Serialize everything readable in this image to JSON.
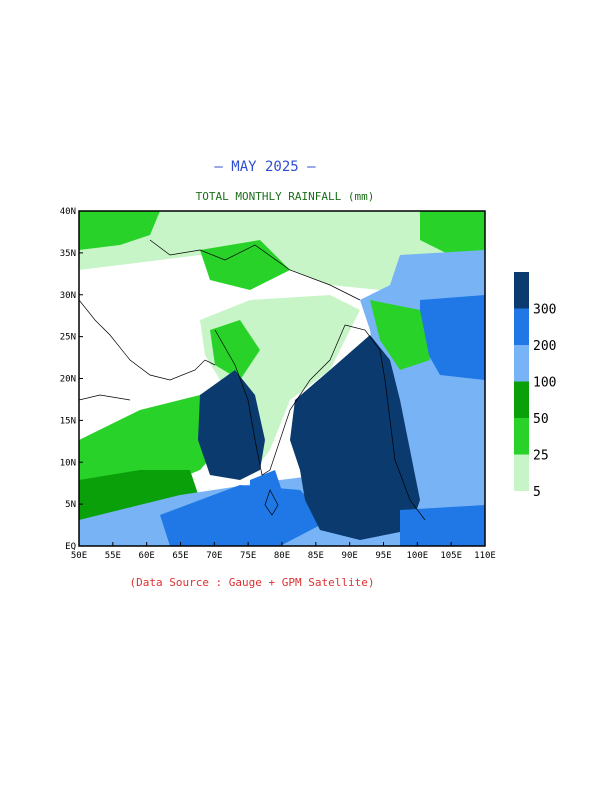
{
  "header": {
    "title": "— MAY 2025 —",
    "subtitle": "TOTAL MONTHLY RAINFALL (mm)"
  },
  "footer": {
    "source": "(Data Source : Gauge + GPM Satellite)"
  },
  "map": {
    "region": "South Asia / Indian Ocean",
    "lon_range": [
      50,
      110
    ],
    "lat_range": [
      0,
      40
    ],
    "x_ticks": [
      "50E",
      "55E",
      "60E",
      "65E",
      "70E",
      "75E",
      "80E",
      "85E",
      "90E",
      "95E",
      "100E",
      "105E",
      "110E"
    ],
    "y_ticks": [
      "EQ",
      "5N",
      "10N",
      "15N",
      "20N",
      "25N",
      "30N",
      "35N",
      "40N"
    ]
  },
  "legend": {
    "unit": "mm",
    "bins": [
      {
        "label": "5",
        "color": "#c8f5c8"
      },
      {
        "label": "25",
        "color": "#28d228"
      },
      {
        "label": "50",
        "color": "#0aa00a"
      },
      {
        "label": "100",
        "color": "#78b4f5"
      },
      {
        "label": "200",
        "color": "#1f78e6"
      },
      {
        "label": "300",
        "color": "#0a3a6e"
      }
    ]
  },
  "colors": {
    "light_green": "#c8f5c8",
    "green": "#28d228",
    "dark_green": "#0aa00a",
    "light_blue": "#78b4f5",
    "blue": "#1f78e6",
    "navy": "#0a3a6e"
  }
}
